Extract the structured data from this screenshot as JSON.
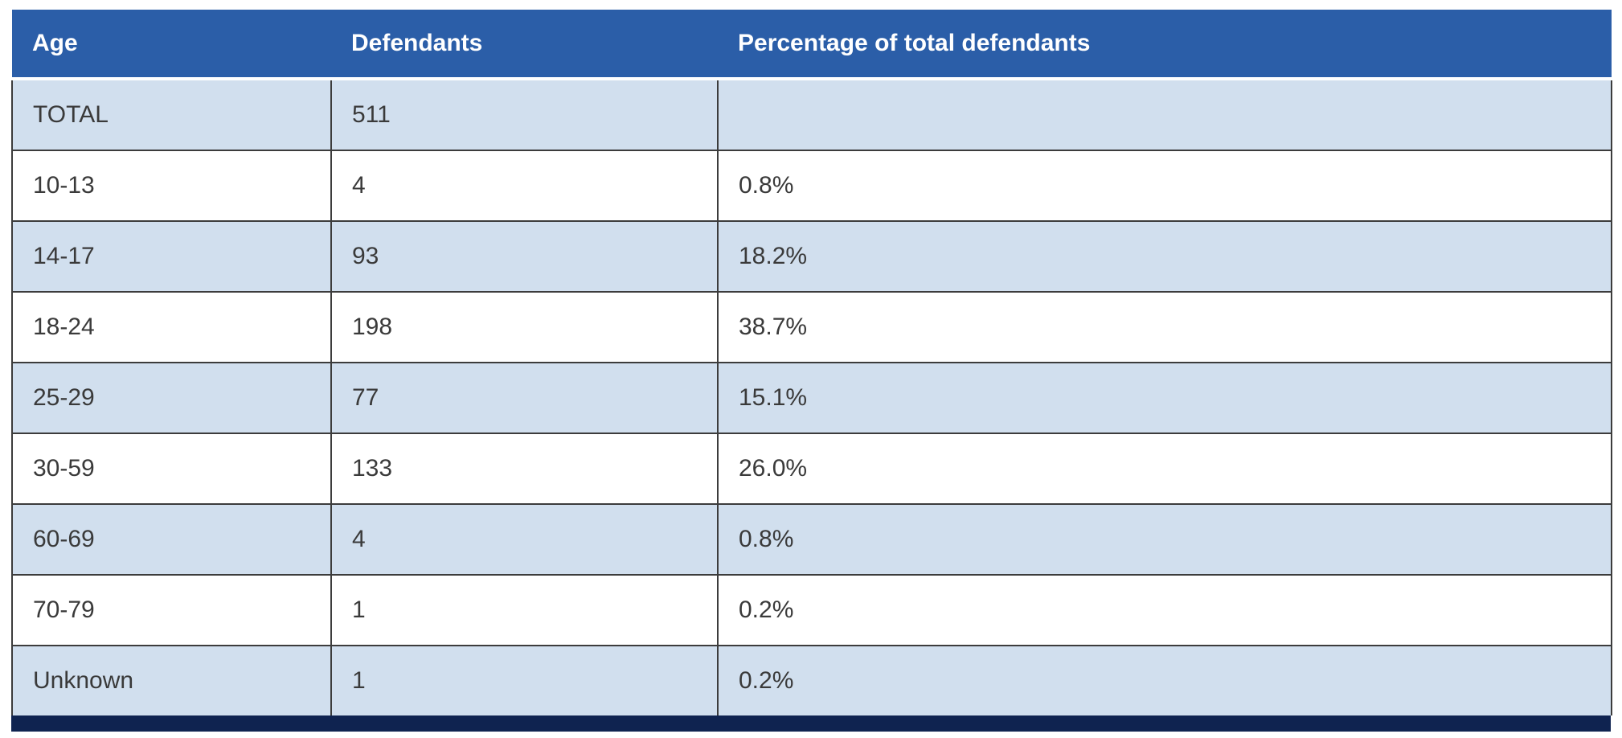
{
  "table": {
    "headers": [
      "Age",
      "Defendants",
      "Percentage of total defendants"
    ],
    "rows": [
      [
        "TOTAL",
        "511",
        ""
      ],
      [
        "10-13",
        "4",
        "0.8%"
      ],
      [
        "14-17",
        "93",
        "18.2%"
      ],
      [
        "18-24",
        "198",
        "38.7%"
      ],
      [
        "25-29",
        "77",
        "15.1%"
      ],
      [
        "30-59",
        "133",
        "26.0%"
      ],
      [
        "60-69",
        "4",
        "0.8%"
      ],
      [
        "70-79",
        "1",
        "0.2%"
      ],
      [
        "Unknown",
        "1",
        "0.2%"
      ]
    ]
  },
  "colors": {
    "header_bg": "#2b5ea8",
    "row_alt_bg": "#d1dfee",
    "footer_bar": "#0f2350"
  }
}
